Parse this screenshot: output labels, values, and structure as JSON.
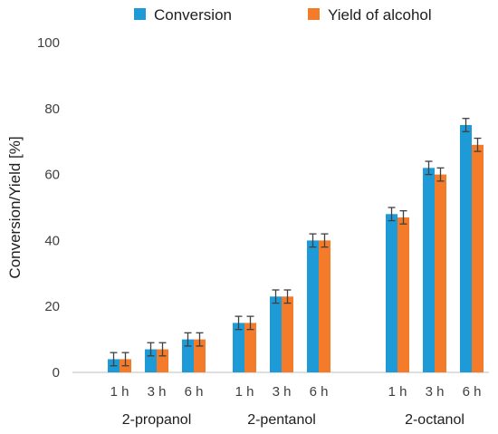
{
  "chart_data": {
    "type": "bar",
    "title": "",
    "xlabel": "",
    "ylabel": "Conversion/Yield [%]",
    "ylim": [
      0,
      100
    ],
    "yticks": [
      0,
      20,
      40,
      60,
      80,
      100
    ],
    "grid": false,
    "legend_position": "top",
    "groups": [
      {
        "label": "2-propanol",
        "categories": [
          "1 h",
          "3 h",
          "6 h"
        ]
      },
      {
        "label": "2-pentanol",
        "categories": [
          "1 h",
          "3 h",
          "6 h"
        ]
      },
      {
        "label": "2-octanol",
        "categories": [
          "1 h",
          "3 h",
          "6 h"
        ]
      }
    ],
    "series": [
      {
        "name": "Conversion",
        "color": "#1E9AD6",
        "values": [
          4,
          7,
          10,
          15,
          23,
          40,
          48,
          62,
          75
        ],
        "errors": [
          2,
          2,
          2,
          2,
          2,
          2,
          2,
          2,
          2
        ]
      },
      {
        "name": "Yield of alcohol",
        "color": "#F47B2A",
        "values": [
          4,
          7,
          10,
          15,
          23,
          40,
          47,
          60,
          69
        ],
        "errors": [
          2,
          2,
          2,
          2,
          2,
          2,
          2,
          2,
          2
        ]
      }
    ]
  }
}
